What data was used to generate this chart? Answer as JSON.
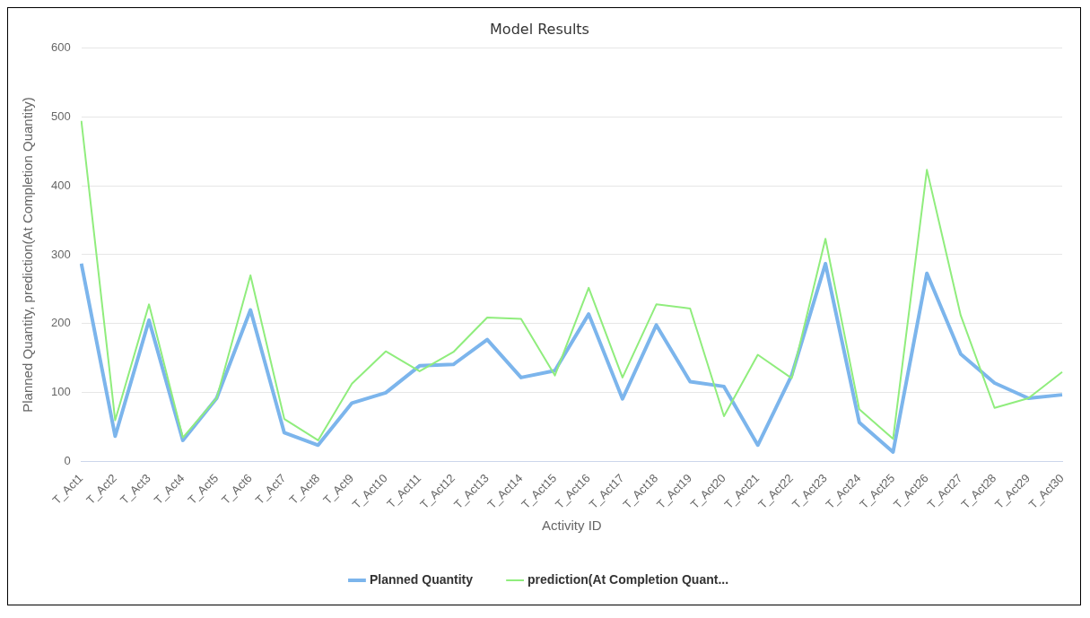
{
  "chart_data": {
    "type": "line",
    "title": "Model Results",
    "xlabel": "Activity ID",
    "ylabel": "Planned Quantity, prediction(At Completion Quantity)",
    "categories": [
      "T_Act1",
      "T_Act2",
      "T_Act3",
      "T_Act4",
      "T_Act5",
      "T_Act6",
      "T_Act7",
      "T_Act8",
      "T_Act9",
      "T_Act10",
      "T_Act11",
      "T_Act12",
      "T_Act13",
      "T_Act14",
      "T_Act15",
      "T_Act16",
      "T_Act17",
      "T_Act18",
      "T_Act19",
      "T_Act20",
      "T_Act21",
      "T_Act22",
      "T_Act23",
      "T_Act24",
      "T_Act25",
      "T_Act26",
      "T_Act27",
      "T_Act28",
      "T_Act29",
      "T_Act30"
    ],
    "series": [
      {
        "name": "Planned Quantity",
        "color": "#7cb5ec",
        "values": [
          287,
          37,
          205,
          31,
          92,
          220,
          42,
          24,
          85,
          100,
          139,
          141,
          177,
          122,
          132,
          214,
          91,
          198,
          116,
          109,
          24,
          125,
          287,
          57,
          14,
          273,
          156,
          114,
          92,
          97
        ]
      },
      {
        "name": "prediction(At Completion Quant...",
        "color": "#90ed7d",
        "values": [
          494,
          60,
          228,
          35,
          92,
          270,
          62,
          31,
          113,
          160,
          131,
          159,
          209,
          207,
          125,
          252,
          122,
          228,
          222,
          66,
          155,
          121,
          323,
          76,
          33,
          423,
          212,
          78,
          92,
          130
        ]
      }
    ],
    "ylim": [
      0,
      600
    ],
    "yticks": [
      0,
      100,
      200,
      300,
      400,
      500,
      600
    ],
    "grid": "y",
    "legend": "bottom",
    "marker": "none",
    "line_style": "solid"
  }
}
